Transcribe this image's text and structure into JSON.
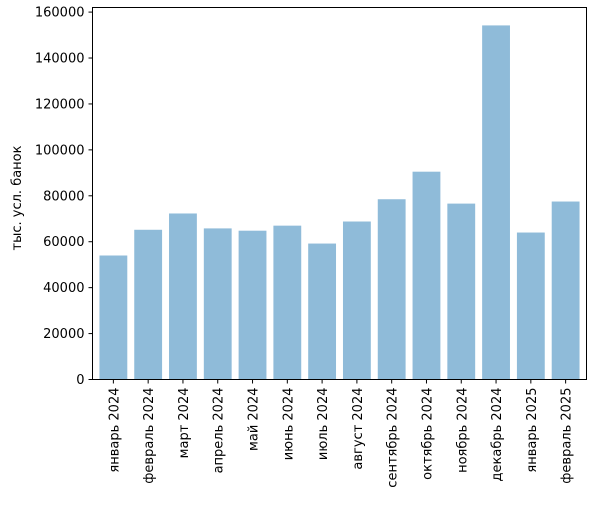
{
  "chart_data": {
    "type": "bar",
    "title": "",
    "xlabel": "",
    "ylabel": "тыс. усл. банок",
    "categories": [
      "январь 2024",
      "февраль 2024",
      "март 2024",
      "апрель 2024",
      "май 2024",
      "июнь 2024",
      "июль 2024",
      "август 2024",
      "сентябрь 2024",
      "октябрь 2024",
      "ноябрь 2024",
      "декабрь 2024",
      "январь 2025",
      "февраль 2025"
    ],
    "values": [
      54000,
      65200,
      72300,
      65800,
      64800,
      67000,
      59200,
      68800,
      78500,
      90500,
      76600,
      154200,
      64000,
      77500
    ],
    "ylim": [
      0,
      162000
    ],
    "yticks": [
      0,
      20000,
      40000,
      60000,
      80000,
      100000,
      120000,
      140000,
      160000
    ],
    "bar_color": "#8fbbd9",
    "grid": false,
    "legend": "none"
  }
}
